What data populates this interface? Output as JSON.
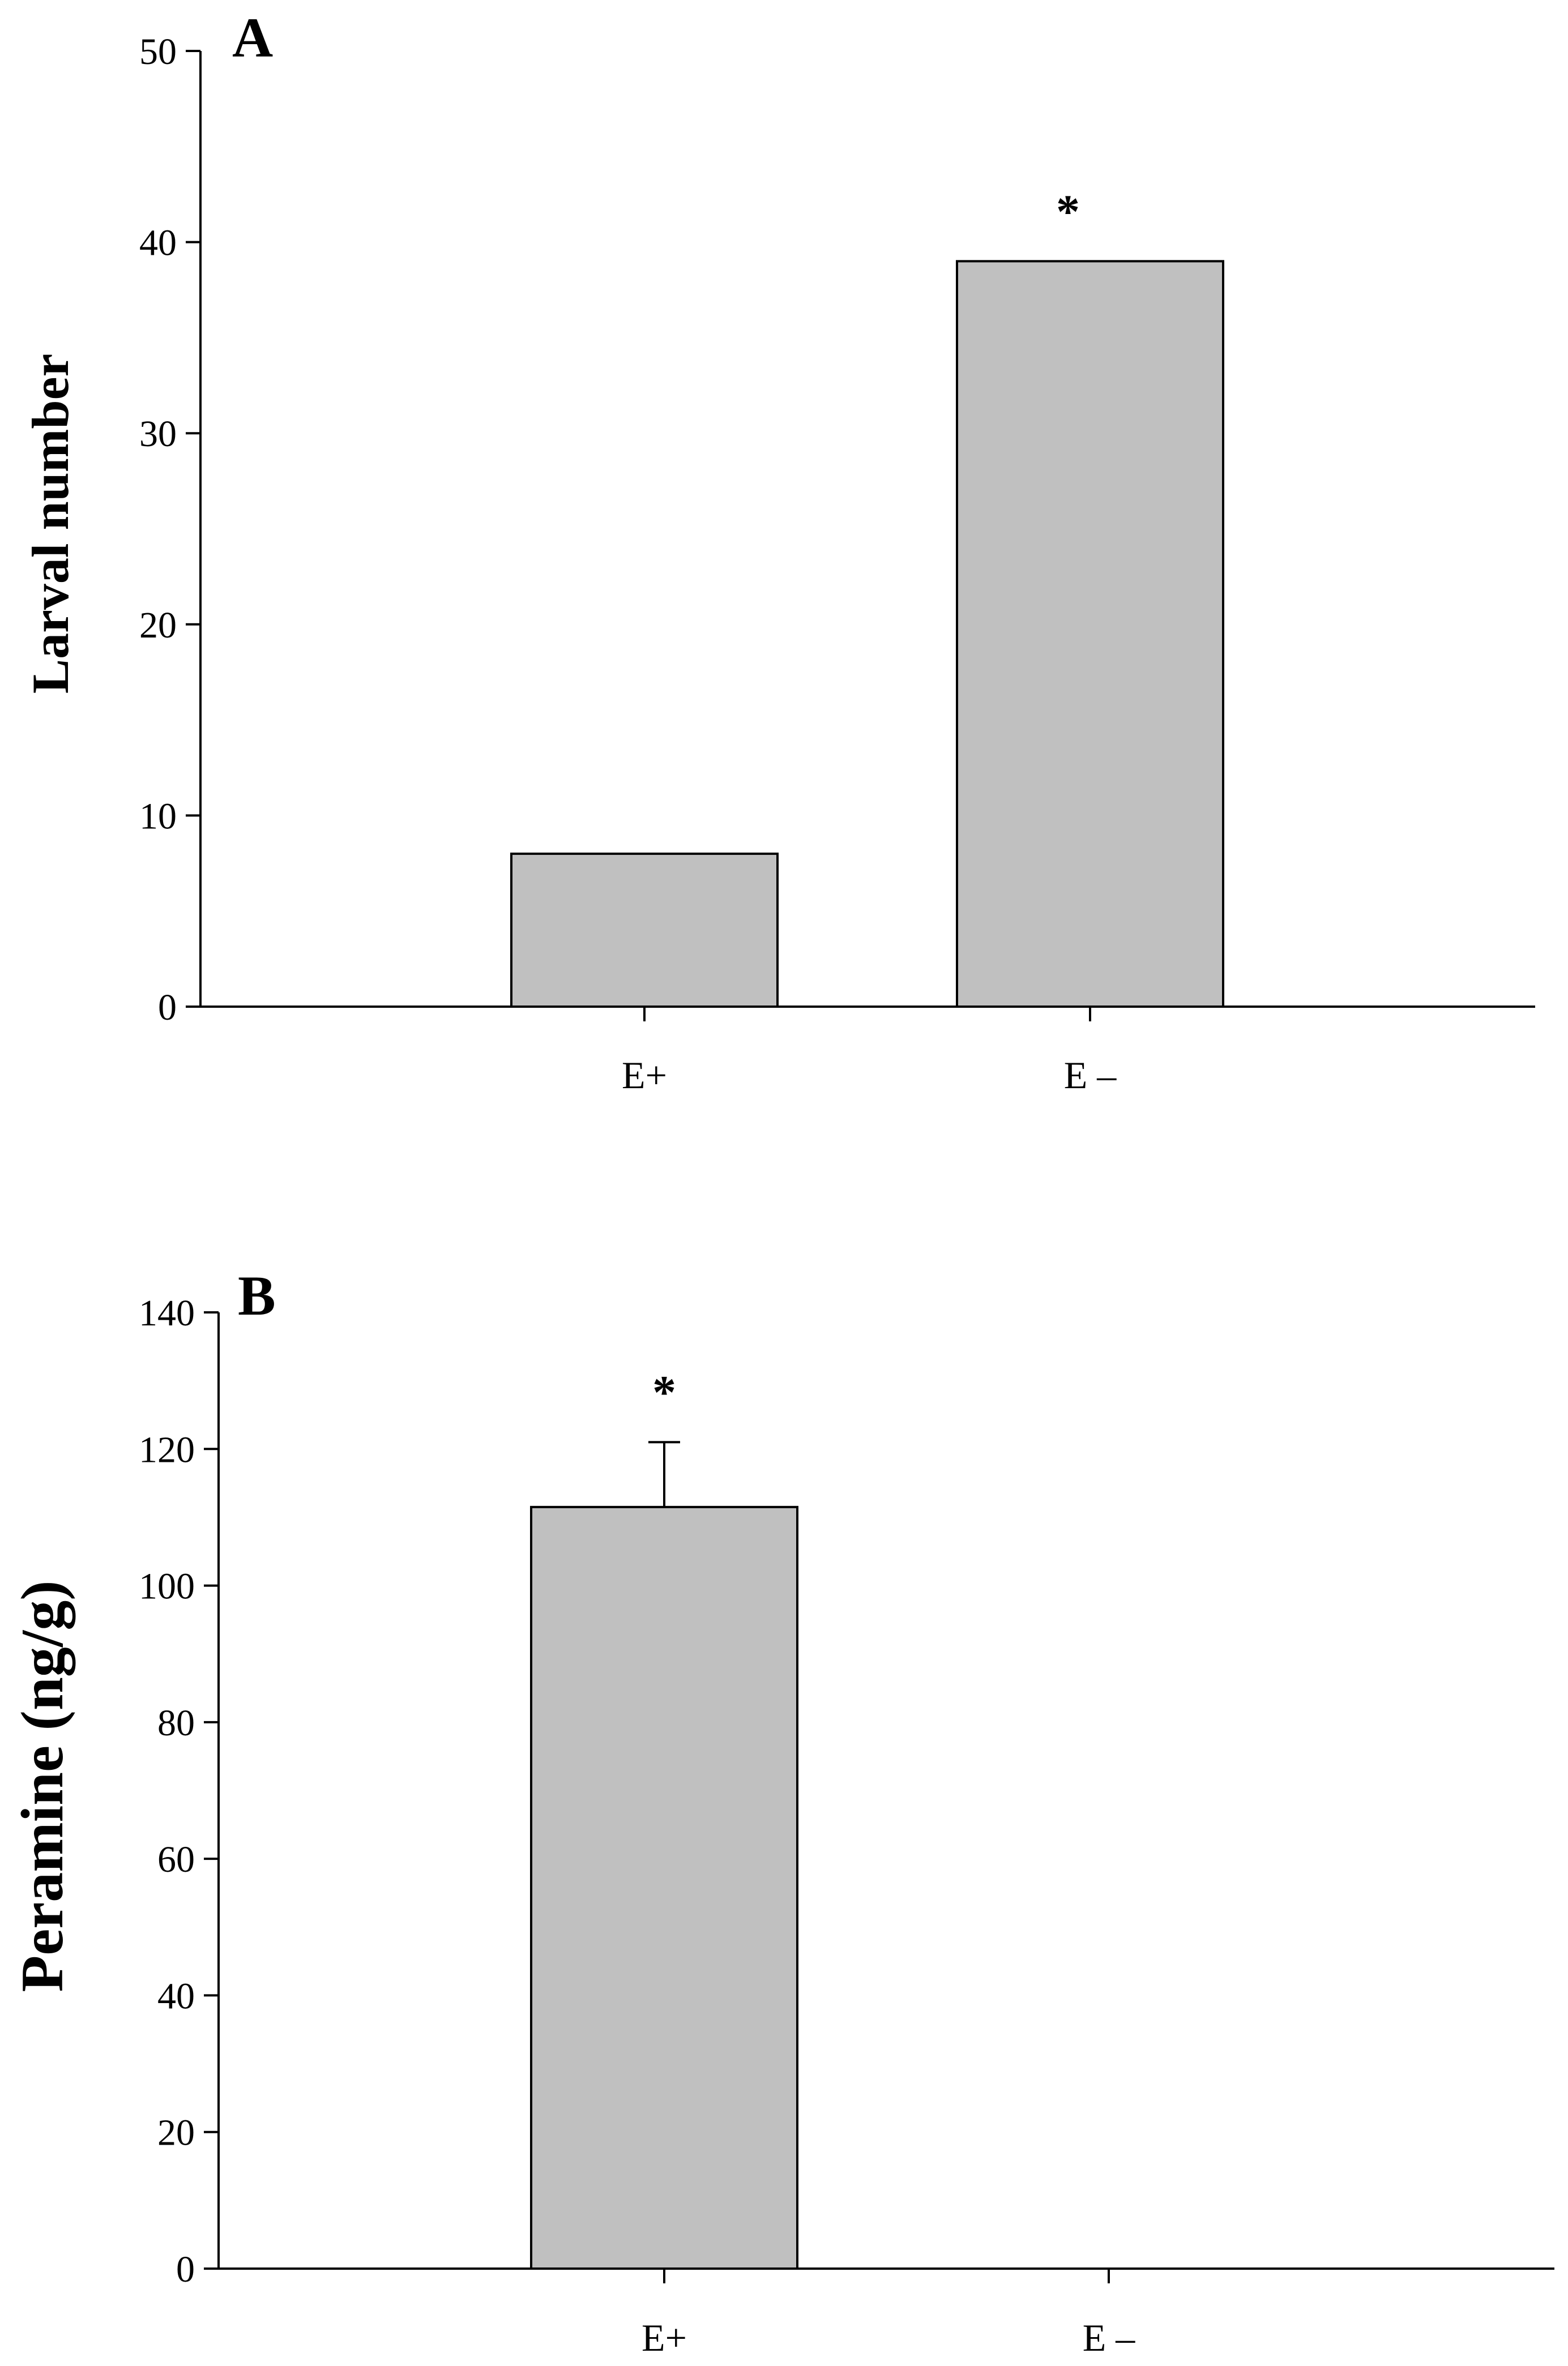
{
  "chart_data": [
    {
      "type": "bar",
      "panel_label": "A",
      "categories": [
        "E+",
        "E –"
      ],
      "values": [
        8,
        39
      ],
      "error": [
        null,
        null
      ],
      "significance": [
        "",
        "*"
      ],
      "title": "",
      "xlabel": "",
      "ylabel": "Larval number",
      "ylim": [
        0,
        50
      ],
      "yticks": [
        0,
        10,
        20,
        30,
        40,
        50
      ],
      "grid": false,
      "legend": "none",
      "bar_color": "#c0c0c0",
      "edge_color": "#000000"
    },
    {
      "type": "bar",
      "panel_label": "B",
      "categories": [
        "E+",
        "E –"
      ],
      "values": [
        111.5,
        0
      ],
      "error": [
        9.5,
        null
      ],
      "significance": [
        "*",
        ""
      ],
      "title": "",
      "xlabel": "",
      "ylabel": "Peramine (ng/g)",
      "ylim": [
        0,
        140
      ],
      "yticks": [
        0,
        20,
        40,
        60,
        80,
        100,
        120,
        140
      ],
      "grid": false,
      "legend": "none",
      "bar_color": "#c0c0c0",
      "edge_color": "#000000"
    }
  ]
}
